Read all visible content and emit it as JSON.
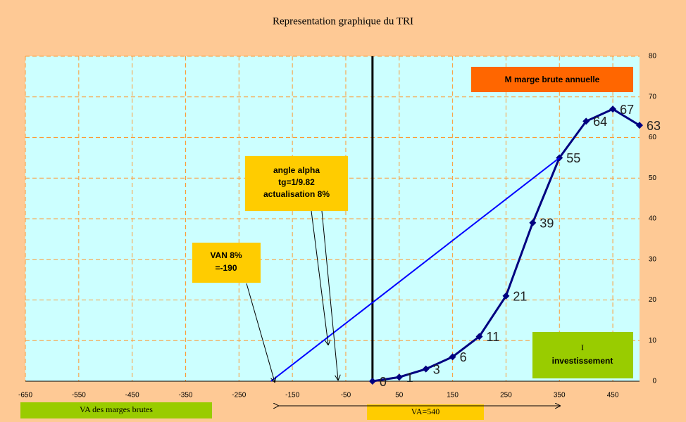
{
  "chart_data": {
    "type": "line",
    "title": "Representation graphique du TRI",
    "series": [
      {
        "color": "#000080",
        "x": [
          0,
          50,
          100,
          150,
          200,
          250,
          300,
          350,
          400,
          450,
          500
        ],
        "values": [
          0,
          1,
          3,
          6,
          11,
          21,
          39,
          55,
          64,
          67,
          63
        ],
        "markers": true,
        "data_labels": true
      },
      {
        "color": "#0000ff",
        "x": [
          -190,
          350
        ],
        "values": [
          0,
          55
        ],
        "markers": false,
        "data_labels": false
      }
    ],
    "xlim": [
      -650,
      500
    ],
    "xticks": [
      -650,
      -550,
      -450,
      -350,
      -250,
      -150,
      -50,
      50,
      150,
      250,
      350,
      450
    ],
    "ylim": [
      0,
      80
    ],
    "yticks": [
      0,
      10,
      20,
      30,
      40,
      50,
      60,
      70,
      80
    ],
    "grid": true,
    "annotations": {
      "marge": [
        "M marge brute annuelle"
      ],
      "angle": [
        "angle alpha",
        "tg=1/9.82",
        "actualisation 8%"
      ],
      "van": [
        "VAN 8%",
        "=-190"
      ],
      "invest": [
        "I",
        "investissement"
      ],
      "va_marges": [
        "VA des marges brutes"
      ],
      "va": [
        "VA=540"
      ]
    }
  }
}
